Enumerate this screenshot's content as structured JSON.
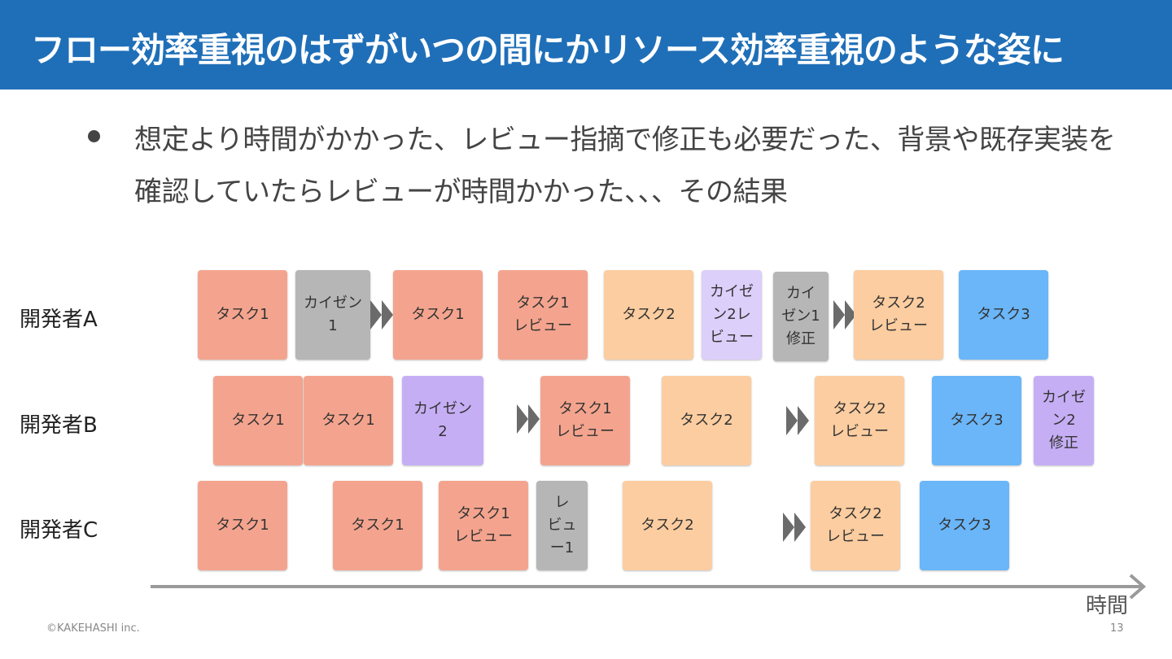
{
  "slide": {
    "title": "フロー効率重視のはずがいつの間にかリソース効率重視のような姿に",
    "bullet": "想定より時間がかかった、レビュー指摘で修正も必要だった、背景や既存実装を確認していたらレビューが時間かかった、、、その結果",
    "copyright": "©KAKEHASHI inc.",
    "page_number": "13",
    "time_axis_label": "時間"
  },
  "developers": {
    "a": "開発者A",
    "b": "開発者B",
    "c": "開発者C"
  },
  "cards": {
    "a1": "タスク1",
    "a2": "カイゼン\n1",
    "a3": "タスク1",
    "a4": "タスク1\nレビュー",
    "a5": "タスク2",
    "a6": "カイゼ\nン2レ\nビュー",
    "a7": "カイ\nゼン1\n修正",
    "a8": "タスク2\nレビュー",
    "a9": "タスク3",
    "b1": "タスク1",
    "b2": "タスク1",
    "b3": "カイゼン\n2",
    "b4": "タスク1\nレビュー",
    "b5": "タスク2",
    "b6": "タスク2\nレビュー",
    "b7": "タスク3",
    "b8": "カイゼ\nン2\n修正",
    "c1": "タスク1",
    "c2": "タスク1",
    "c3": "タスク1\nレビュー",
    "c4": "レ\nビュ\nー1",
    "c5": "タスク2",
    "c6": "タスク2\nレビュー",
    "c7": "タスク3"
  },
  "colors": {
    "header": "#1f6fb8",
    "task1": "#f4a48e",
    "task2": "#fccda0",
    "task3": "#6ab6f9",
    "kaizen": "#c6aef5",
    "review_gray": "#b6b6b6"
  }
}
